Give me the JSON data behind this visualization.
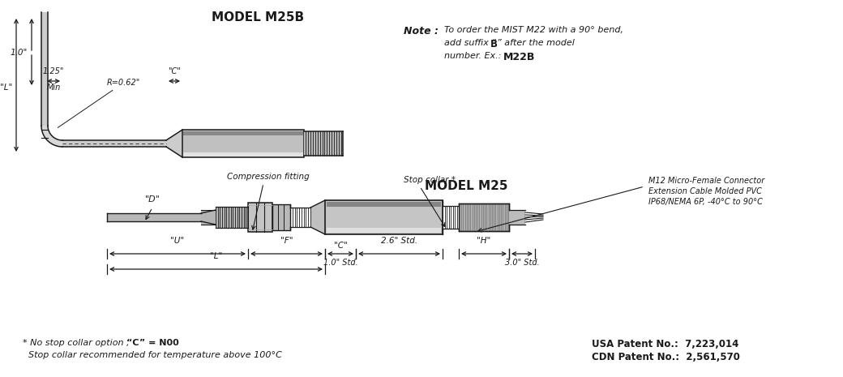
{
  "bg_color": "#ffffff",
  "line_color": "#1a1a1a",
  "model_m25b_label": "MODEL M25B",
  "model_m25_label": "MODEL M25",
  "note_label": "Note :",
  "note_text_1": "To order the MIST M22 with a 90° bend,",
  "note_text_2b_pre": "add suffix “",
  "note_text_2b_bold": "B",
  "note_text_2b_post": "” after the model",
  "note_text_3_pre": "number. Ex.:  ",
  "note_text_3_bold": "M22B",
  "dim_125": "1.25\"",
  "dim_min": "Min",
  "dim_c_top": "\"C\"",
  "dim_10_vert": "1.0\"",
  "dim_r062": "R=0.62\"",
  "dim_L_top": "\"L\"",
  "dim_D": "\"D\"",
  "dim_U": "\"U\"",
  "dim_F": "\"F\"",
  "dim_C_bot_top": "\"C\"",
  "dim_C_bot_bot": "1.0\" Std.",
  "dim_26": "2.6\" Std.",
  "dim_H": "\"H\"",
  "dim_30": "3.0\" Std.",
  "dim_L_bot": "\"L\"",
  "label_comp": "Compression fitting",
  "label_stop": "Stop collar *",
  "label_m12_1": "M12 Micro-Female Connector",
  "label_m12_2": "Extension Cable Molded PVC",
  "label_m12_3": "IP68/NEMA 6P, -40°C to 90°C",
  "footnote1_pre": "* No stop collar option ,  ",
  "footnote1_bold": "“C” = N00",
  "footnote2": "  Stop collar recommended for temperature above 100°C",
  "patent1": "USA Patent No.:  7,223,014",
  "patent2": "CDN Patent No.:  2,561,570"
}
